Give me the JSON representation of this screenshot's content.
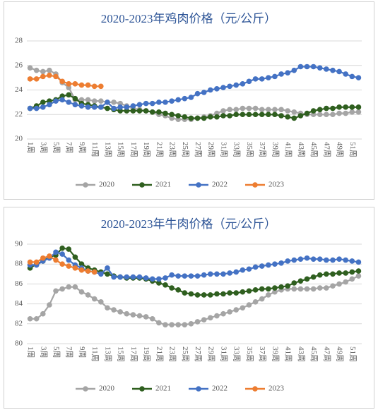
{
  "chart_data": [
    {
      "type": "line",
      "title": "2020-2023年鸡肉价格（元/公斤）",
      "categories": [
        "1周",
        null,
        "3周",
        null,
        "5周",
        null,
        "7周",
        null,
        "9周",
        null,
        "11周",
        null,
        "13周",
        null,
        "15周",
        null,
        "17周",
        null,
        "19周",
        null,
        "21周",
        null,
        "23周",
        null,
        "25周",
        null,
        "27周",
        null,
        "29周",
        null,
        "31周",
        null,
        "33周",
        null,
        "35周",
        null,
        "37周",
        null,
        "39周",
        null,
        "41周",
        null,
        "43周",
        null,
        "45周",
        null,
        "47周",
        null,
        "49周",
        null,
        "51周",
        null
      ],
      "ylim": [
        20,
        28
      ],
      "yticks": [
        20,
        22,
        24,
        26,
        28
      ],
      "grid": true,
      "legend": "bottom",
      "series": [
        {
          "name": "2020",
          "color": "#a5a5a5",
          "values": [
            25.8,
            25.6,
            25.5,
            25.6,
            25.3,
            24.6,
            24.2,
            23.2,
            23.2,
            23.2,
            23.1,
            23.1,
            23.0,
            23.0,
            22.9,
            22.7,
            22.5,
            22.4,
            22.3,
            22.2,
            22.0,
            21.9,
            21.7,
            21.6,
            21.6,
            21.6,
            21.7,
            21.8,
            21.9,
            22.1,
            22.3,
            22.4,
            22.4,
            22.5,
            22.5,
            22.5,
            22.4,
            22.4,
            22.4,
            22.4,
            22.3,
            22.2,
            22.1,
            22.0,
            22.0,
            22.0,
            22.0,
            22.0,
            22.1,
            22.1,
            22.2,
            22.2
          ]
        },
        {
          "name": "2021",
          "color": "#2f5f1f",
          "values": [
            22.5,
            22.7,
            23.0,
            23.1,
            23.2,
            23.5,
            23.6,
            23.3,
            22.9,
            22.8,
            22.7,
            22.6,
            22.5,
            22.4,
            22.3,
            22.3,
            22.3,
            22.3,
            22.3,
            22.2,
            22.2,
            22.1,
            22.0,
            21.9,
            21.8,
            21.7,
            21.7,
            21.7,
            21.8,
            21.8,
            21.9,
            21.9,
            22.0,
            22.0,
            22.0,
            22.0,
            22.0,
            22.0,
            22.0,
            21.9,
            21.8,
            21.7,
            21.9,
            22.1,
            22.3,
            22.4,
            22.5,
            22.5,
            22.6,
            22.6,
            22.6,
            22.6
          ]
        },
        {
          "name": "2022",
          "color": "#4472c4",
          "values": [
            22.5,
            22.5,
            22.6,
            22.8,
            23.1,
            23.2,
            23.0,
            22.8,
            22.7,
            22.6,
            22.6,
            22.6,
            23.0,
            22.5,
            22.6,
            22.6,
            22.7,
            22.8,
            22.9,
            22.9,
            23.0,
            23.0,
            23.1,
            23.2,
            23.3,
            23.4,
            23.7,
            23.8,
            24.0,
            24.1,
            24.2,
            24.3,
            24.4,
            24.5,
            24.7,
            24.9,
            24.9,
            25.0,
            25.1,
            25.3,
            25.4,
            25.6,
            25.9,
            25.9,
            25.9,
            25.8,
            25.7,
            25.6,
            25.5,
            25.3,
            25.1,
            25.0
          ]
        },
        {
          "name": "2023",
          "color": "#ed7d31",
          "values": [
            24.9,
            24.9,
            25.1,
            25.2,
            25.1,
            24.7,
            24.5,
            24.5,
            24.4,
            24.4,
            24.3,
            24.3,
            null,
            null,
            null,
            null,
            null,
            null,
            null,
            null,
            null,
            null,
            null,
            null,
            null,
            null,
            null,
            null,
            null,
            null,
            null,
            null,
            null,
            null,
            null,
            null,
            null,
            null,
            null,
            null,
            null,
            null,
            null,
            null,
            null,
            null,
            null,
            null,
            null,
            null,
            null,
            null
          ]
        }
      ]
    },
    {
      "type": "line",
      "title": "2020-2023年牛肉价格（元/公斤）",
      "categories": [
        "1周",
        null,
        "3周",
        null,
        "5周",
        null,
        "7周",
        null,
        "9周",
        null,
        "11周",
        null,
        "13周",
        null,
        "15周",
        null,
        "17周",
        null,
        "19周",
        null,
        "21周",
        null,
        "23周",
        null,
        "25周",
        null,
        "27周",
        null,
        "29周",
        null,
        "31周",
        null,
        "33周",
        null,
        "35周",
        null,
        "37周",
        null,
        "39周",
        null,
        "41周",
        null,
        "43周",
        null,
        "45周",
        null,
        "47周",
        null,
        "49周",
        null,
        "51周",
        null
      ],
      "ylim": [
        80,
        90
      ],
      "yticks": [
        80,
        82,
        84,
        86,
        88,
        90
      ],
      "grid": true,
      "legend": "bottom",
      "series": [
        {
          "name": "2020",
          "color": "#a5a5a5",
          "values": [
            82.5,
            82.5,
            83.0,
            83.9,
            85.3,
            85.5,
            85.7,
            85.7,
            85.2,
            84.9,
            84.5,
            84.2,
            83.6,
            83.4,
            83.2,
            83.0,
            82.9,
            82.8,
            82.7,
            82.5,
            82.1,
            81.9,
            81.9,
            81.9,
            81.9,
            82.0,
            82.2,
            82.4,
            82.6,
            82.8,
            83.0,
            83.2,
            83.4,
            83.6,
            83.9,
            84.2,
            84.5,
            84.9,
            85.2,
            85.4,
            85.5,
            85.5,
            85.5,
            85.5,
            85.5,
            85.6,
            85.6,
            85.8,
            86.0,
            86.2,
            86.5,
            86.8
          ]
        },
        {
          "name": "2021",
          "color": "#2f5f1f",
          "values": [
            87.6,
            88.0,
            88.3,
            88.7,
            88.9,
            89.6,
            89.5,
            88.7,
            88.0,
            87.6,
            87.4,
            87.2,
            87.0,
            86.8,
            86.7,
            86.6,
            86.6,
            86.6,
            86.5,
            86.3,
            86.1,
            85.9,
            85.6,
            85.4,
            85.1,
            85.0,
            84.9,
            84.9,
            84.9,
            85.0,
            85.0,
            85.1,
            85.1,
            85.2,
            85.3,
            85.4,
            85.5,
            85.5,
            85.6,
            85.7,
            85.8,
            86.1,
            86.3,
            86.5,
            86.7,
            86.9,
            87.0,
            87.0,
            87.1,
            87.1,
            87.2,
            87.3
          ]
        },
        {
          "name": "2022",
          "color": "#4472c4",
          "values": [
            87.9,
            87.9,
            88.3,
            88.6,
            89.2,
            89.0,
            88.4,
            87.9,
            87.6,
            87.3,
            87.2,
            87.0,
            87.6,
            86.7,
            86.7,
            86.7,
            86.7,
            86.7,
            86.6,
            86.5,
            86.5,
            86.6,
            86.9,
            86.8,
            86.8,
            86.8,
            86.8,
            86.9,
            87.0,
            87.0,
            87.0,
            87.1,
            87.2,
            87.4,
            87.5,
            87.7,
            87.8,
            87.9,
            88.0,
            88.1,
            88.3,
            88.4,
            88.5,
            88.6,
            88.5,
            88.5,
            88.4,
            88.4,
            88.5,
            88.4,
            88.3,
            88.2
          ]
        },
        {
          "name": "2023",
          "color": "#ed7d31",
          "values": [
            88.2,
            88.2,
            88.6,
            88.8,
            88.4,
            88.0,
            87.8,
            87.6,
            87.4,
            87.3,
            87.2,
            null,
            null,
            null,
            null,
            null,
            null,
            null,
            null,
            null,
            null,
            null,
            null,
            null,
            null,
            null,
            null,
            null,
            null,
            null,
            null,
            null,
            null,
            null,
            null,
            null,
            null,
            null,
            null,
            null,
            null,
            null,
            null,
            null,
            null,
            null,
            null,
            null,
            null,
            null,
            null,
            null
          ]
        }
      ]
    }
  ]
}
